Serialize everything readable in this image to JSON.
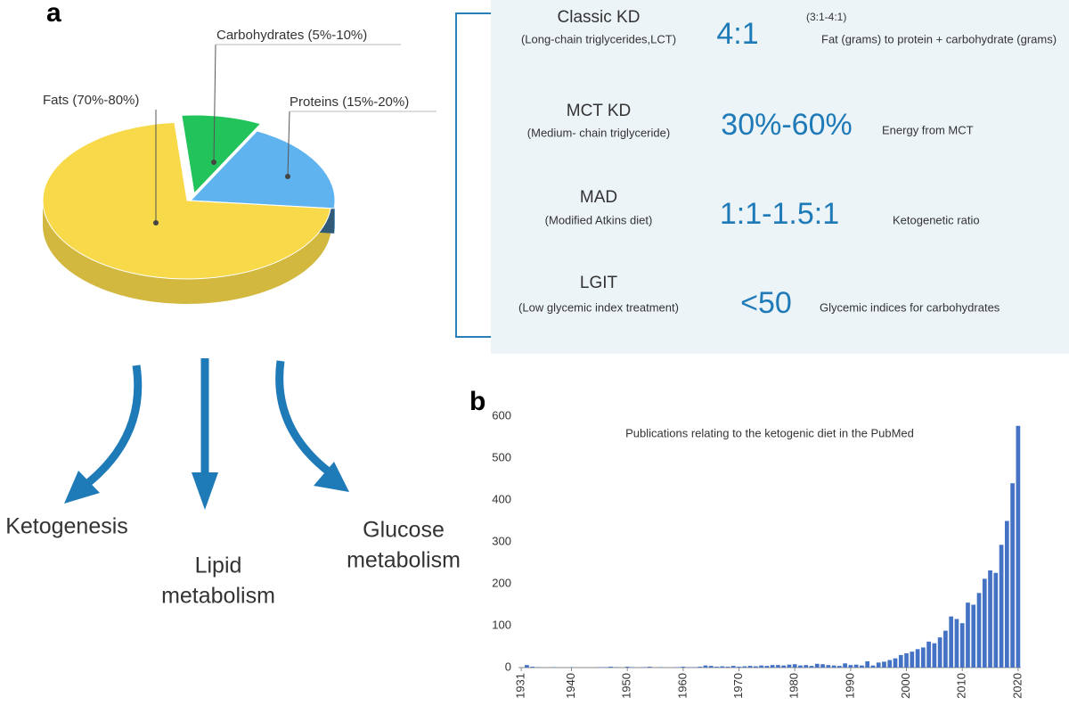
{
  "chart_data": [
    {
      "type": "pie",
      "categories": [
        "Fats (70%-80%)",
        "Carbohydrates (5%-10%)",
        "Proteins (15%-20%)"
      ],
      "values": [
        72,
        9,
        19
      ],
      "colors": [
        "#f8d94a",
        "#22c35a",
        "#5fb4ef"
      ]
    },
    {
      "type": "bar",
      "title": "Publications relating to the ketogenic diet in the PubMed",
      "color": "#4472c4",
      "x": [
        1931,
        1932,
        1933,
        1934,
        1935,
        1936,
        1937,
        1938,
        1939,
        1940,
        1941,
        1942,
        1943,
        1944,
        1945,
        1946,
        1947,
        1948,
        1949,
        1950,
        1951,
        1952,
        1953,
        1954,
        1955,
        1956,
        1957,
        1958,
        1959,
        1960,
        1961,
        1962,
        1963,
        1964,
        1965,
        1966,
        1967,
        1968,
        1969,
        1970,
        1971,
        1972,
        1973,
        1974,
        1975,
        1976,
        1977,
        1978,
        1979,
        1980,
        1981,
        1982,
        1983,
        1984,
        1985,
        1986,
        1987,
        1988,
        1989,
        1990,
        1991,
        1992,
        1993,
        1994,
        1995,
        1996,
        1997,
        1998,
        1999,
        2000,
        2001,
        2002,
        2003,
        2004,
        2005,
        2006,
        2007,
        2008,
        2009,
        2010,
        2011,
        2012,
        2013,
        2014,
        2015,
        2016,
        2017,
        2018,
        2019,
        2020
      ],
      "values": [
        0,
        6,
        2,
        1,
        0,
        0,
        1,
        0,
        0,
        1,
        0,
        0,
        0,
        0,
        1,
        1,
        2,
        1,
        0,
        2,
        1,
        0,
        1,
        2,
        0,
        1,
        0,
        0,
        1,
        2,
        1,
        1,
        2,
        5,
        4,
        2,
        3,
        2,
        4,
        2,
        3,
        4,
        3,
        5,
        4,
        6,
        6,
        5,
        7,
        8,
        5,
        6,
        4,
        9,
        8,
        6,
        5,
        4,
        10,
        6,
        7,
        5,
        15,
        5,
        12,
        14,
        18,
        22,
        30,
        34,
        38,
        44,
        48,
        62,
        58,
        72,
        88,
        122,
        116,
        106,
        155,
        150,
        178,
        212,
        232,
        226,
        293,
        350,
        440,
        577
      ],
      "xlim": [
        1930.5,
        2020.5
      ],
      "xticks": [
        1931,
        1940,
        1950,
        1960,
        1970,
        1980,
        1990,
        2000,
        2010,
        2020
      ],
      "ylim": [
        0,
        600
      ],
      "yticks": [
        0,
        100,
        200,
        300,
        400,
        500,
        600
      ]
    }
  ],
  "panel_labels": [
    "a",
    "b"
  ],
  "diets": [
    {
      "name": "Classic KD",
      "full": "(Long-chain triglycerides,LCT)",
      "ratio": "4:1",
      "note": "(3:1-4:1)",
      "description": "Fat (grams) to protein + carbohydrate (grams)"
    },
    {
      "name": "MCT KD",
      "full": "(Medium- chain triglyceride)",
      "ratio": "30%-60%",
      "description": "Energy from MCT"
    },
    {
      "name": "MAD",
      "full": "(Modified Atkins diet)",
      "ratio": "1:1-1.5:1",
      "description": "Ketogenetic ratio"
    },
    {
      "name": "LGIT",
      "full": "(Low glycemic index treatment)",
      "ratio": "<50",
      "description": "Glycemic indices for carbohydrates"
    }
  ],
  "outcomes": [
    [
      "Ketogenesis"
    ],
    [
      "Lipid",
      "metabolism"
    ],
    [
      "Glucose",
      "metabolism"
    ]
  ]
}
